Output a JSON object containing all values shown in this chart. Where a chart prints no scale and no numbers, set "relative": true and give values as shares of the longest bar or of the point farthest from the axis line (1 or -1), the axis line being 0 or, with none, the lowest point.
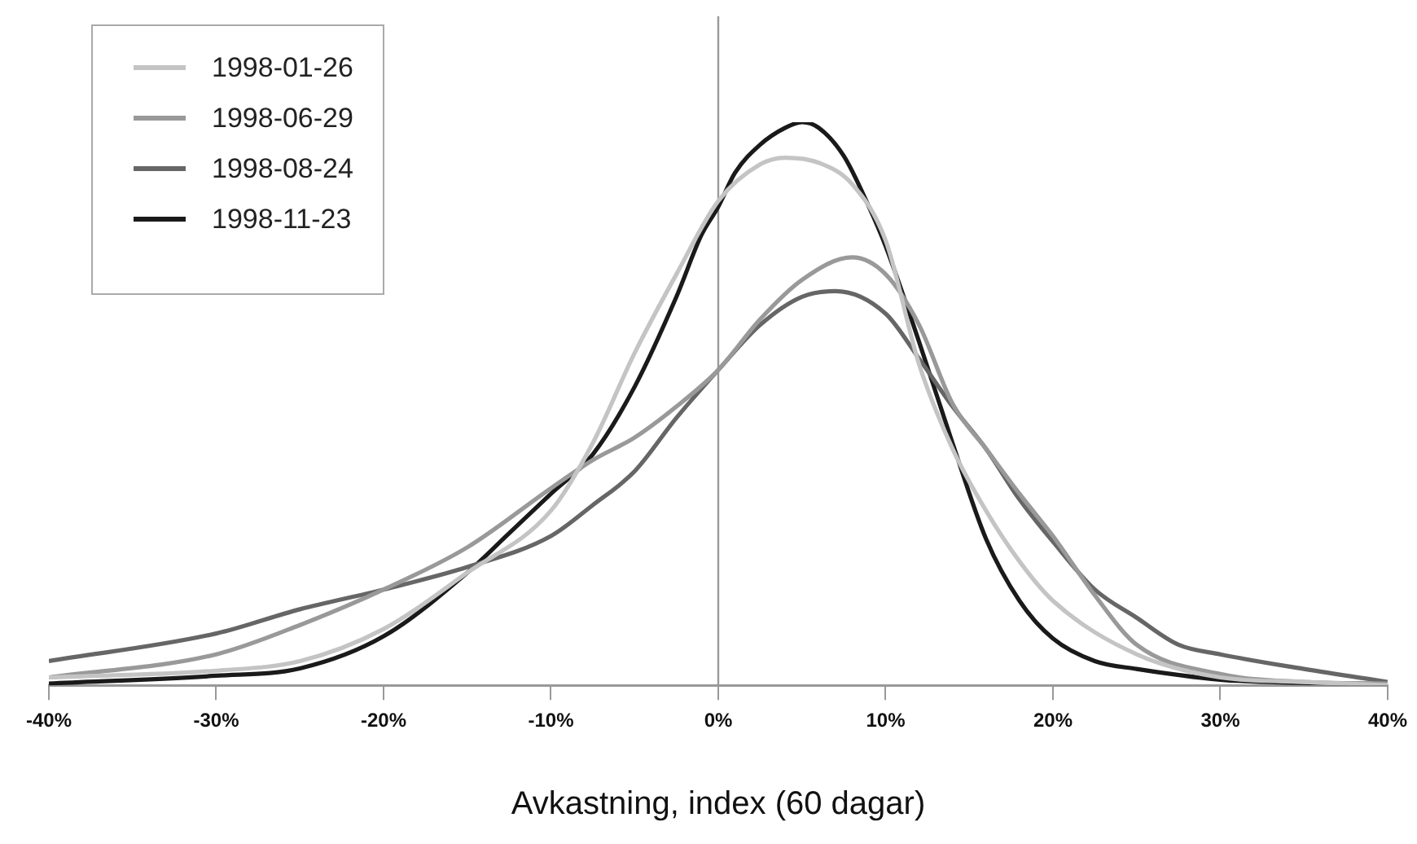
{
  "chart_data": {
    "type": "line",
    "relative": true,
    "xlabel": "Avkastning, index (60 dagar)",
    "xlim": [
      -40,
      40
    ],
    "xticks": [
      {
        "value": -40,
        "label": "-40%"
      },
      {
        "value": -30,
        "label": "-30%"
      },
      {
        "value": -20,
        "label": "-20%"
      },
      {
        "value": -10,
        "label": "-10%"
      },
      {
        "value": 0,
        "label": "0%"
      },
      {
        "value": 10,
        "label": "10%"
      },
      {
        "value": 20,
        "label": "20%"
      },
      {
        "value": 30,
        "label": "30%"
      },
      {
        "value": 40,
        "label": "40%"
      }
    ],
    "legend": "top left",
    "grid": false,
    "marker": "none",
    "line_style": "solid",
    "ref_lines": [
      {
        "axis": "x",
        "value": 0,
        "color": "#999999"
      }
    ],
    "series": [
      {
        "name": "1998-01-26",
        "color": "#c4c4c4",
        "x": [
          -40,
          -30,
          -25,
          -20,
          -15,
          -10,
          -7.5,
          -5,
          -2.5,
          0,
          2.5,
          4,
          6,
          8,
          10,
          12,
          14,
          16,
          18,
          20,
          25,
          30,
          35,
          40
        ],
        "values": [
          0.014,
          0.026,
          0.043,
          0.1,
          0.2,
          0.31,
          0.43,
          0.59,
          0.73,
          0.86,
          0.925,
          0.937,
          0.928,
          0.89,
          0.79,
          0.57,
          0.42,
          0.31,
          0.22,
          0.15,
          0.055,
          0.014,
          0.006,
          0
        ]
      },
      {
        "name": "1998-06-29",
        "color": "#999999",
        "x": [
          -40,
          -30,
          -25,
          -20,
          -15,
          -10,
          -7.5,
          -5,
          -2.5,
          0,
          2.5,
          5,
          8,
          10,
          12,
          14,
          16,
          18,
          20,
          22.5,
          25,
          30,
          35,
          40
        ],
        "values": [
          0.014,
          0.055,
          0.107,
          0.17,
          0.245,
          0.35,
          0.4,
          0.44,
          0.495,
          0.56,
          0.65,
          0.72,
          0.76,
          0.73,
          0.64,
          0.5,
          0.42,
          0.34,
          0.265,
          0.16,
          0.072,
          0.02,
          0.006,
          0.003
        ]
      },
      {
        "name": "1998-08-24",
        "color": "#666666",
        "x": [
          -40,
          -30,
          -25,
          -20,
          -15,
          -10,
          -7.5,
          -5,
          -2.5,
          0,
          2.5,
          5,
          7,
          10,
          12,
          14,
          16,
          18,
          20,
          22.5,
          25,
          27.5,
          30,
          35,
          40
        ],
        "values": [
          0.043,
          0.092,
          0.135,
          0.17,
          0.21,
          0.265,
          0.32,
          0.38,
          0.475,
          0.56,
          0.64,
          0.69,
          0.7,
          0.66,
          0.58,
          0.495,
          0.42,
          0.33,
          0.255,
          0.17,
          0.12,
          0.072,
          0.055,
          0.029,
          0.006
        ]
      },
      {
        "name": "1998-11-23",
        "color": "#1a1a1a",
        "x": [
          -40,
          -30,
          -25,
          -20,
          -15,
          -12.5,
          -10,
          -7.5,
          -5,
          -2.5,
          -1,
          0,
          1,
          2.5,
          4,
          5,
          6,
          7.5,
          9,
          10,
          12,
          14,
          16,
          18,
          20,
          22.5,
          25,
          30,
          35,
          40
        ],
        "values": [
          0.003,
          0.017,
          0.03,
          0.087,
          0.2,
          0.27,
          0.34,
          0.41,
          0.53,
          0.69,
          0.8,
          0.85,
          0.91,
          0.96,
          0.99,
          1,
          0.99,
          0.94,
          0.85,
          0.78,
          0.61,
          0.43,
          0.26,
          0.15,
          0.083,
          0.043,
          0.029,
          0.01,
          0.004,
          0
        ]
      }
    ]
  }
}
